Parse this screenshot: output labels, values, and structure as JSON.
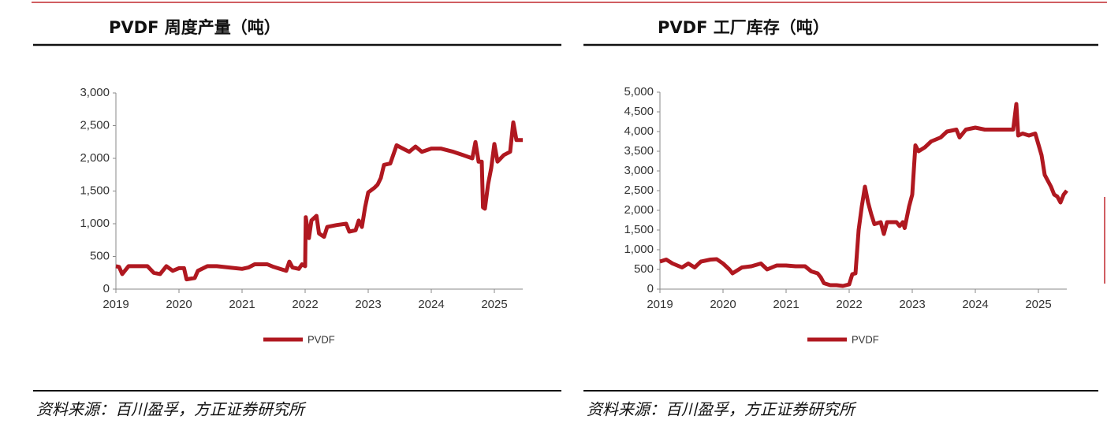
{
  "chart_data": [
    {
      "type": "line",
      "title": "PVDF 周度产量（吨）",
      "source": "资料来源：百川盈孚，方正证券研究所",
      "x": [
        2019.0,
        2019.05,
        2019.1,
        2019.2,
        2019.35,
        2019.5,
        2019.6,
        2019.7,
        2019.8,
        2019.9,
        2020.0,
        2020.08,
        2020.12,
        2020.25,
        2020.3,
        2020.45,
        2020.6,
        2020.8,
        2021.0,
        2021.1,
        2021.2,
        2021.4,
        2021.5,
        2021.6,
        2021.7,
        2021.75,
        2021.8,
        2021.9,
        2021.95,
        2022.0,
        2022.01,
        2022.06,
        2022.1,
        2022.18,
        2022.22,
        2022.3,
        2022.35,
        2022.5,
        2022.65,
        2022.7,
        2022.8,
        2022.85,
        2022.9,
        2022.95,
        2023.0,
        2023.1,
        2023.15,
        2023.2,
        2023.25,
        2023.35,
        2023.45,
        2023.55,
        2023.65,
        2023.75,
        2023.85,
        2024.0,
        2024.15,
        2024.35,
        2024.5,
        2024.65,
        2024.7,
        2024.75,
        2024.8,
        2024.82,
        2024.85,
        2024.9,
        2024.95,
        2025.0,
        2025.05,
        2025.15,
        2025.25,
        2025.3,
        2025.35,
        2025.45
      ],
      "series": [
        {
          "name": "PVDF",
          "color": "#b01820",
          "values": [
            350,
            340,
            230,
            350,
            350,
            350,
            250,
            230,
            350,
            280,
            320,
            320,
            150,
            170,
            280,
            350,
            350,
            330,
            310,
            330,
            380,
            380,
            340,
            310,
            280,
            420,
            330,
            310,
            380,
            350,
            1100,
            780,
            1050,
            1120,
            850,
            800,
            950,
            980,
            1000,
            880,
            900,
            1050,
            950,
            1250,
            1480,
            1550,
            1600,
            1700,
            1900,
            1920,
            2200,
            2150,
            2100,
            2180,
            2100,
            2150,
            2150,
            2100,
            2050,
            2000,
            2250,
            1950,
            1950,
            1250,
            1230,
            1600,
            1850,
            2220,
            1950,
            2050,
            2100,
            2550,
            2280,
            2280
          ]
        }
      ],
      "xlim": [
        2019,
        2025.45
      ],
      "xticks": [
        2019,
        2020,
        2021,
        2022,
        2023,
        2024,
        2025
      ],
      "ylim": [
        0,
        3000
      ],
      "yticks": [
        0,
        500,
        {
          "value": 1000,
          "label": "1,000"
        },
        {
          "value": 1500,
          "label": "1,500"
        },
        {
          "value": 2000,
          "label": "2,000"
        },
        {
          "value": 2500,
          "label": "2,500"
        },
        {
          "value": 3000,
          "label": "3,000"
        }
      ],
      "grid": false
    },
    {
      "type": "line",
      "title": "PVDF 工厂库存（吨）",
      "source": "资料来源：百川盈孚，方正证券研究所",
      "x": [
        2019.0,
        2019.1,
        2019.2,
        2019.35,
        2019.45,
        2019.55,
        2019.65,
        2019.8,
        2019.9,
        2020.0,
        2020.1,
        2020.15,
        2020.3,
        2020.45,
        2020.6,
        2020.7,
        2020.85,
        2021.0,
        2021.15,
        2021.3,
        2021.4,
        2021.5,
        2021.55,
        2021.6,
        2021.7,
        2021.8,
        2021.9,
        2022.0,
        2022.05,
        2022.1,
        2022.15,
        2022.2,
        2022.25,
        2022.3,
        2022.35,
        2022.4,
        2022.5,
        2022.55,
        2022.6,
        2022.75,
        2022.8,
        2022.85,
        2022.88,
        2022.95,
        2023.0,
        2023.05,
        2023.1,
        2023.2,
        2023.3,
        2023.45,
        2023.55,
        2023.7,
        2023.75,
        2023.85,
        2024.0,
        2024.15,
        2024.3,
        2024.45,
        2024.6,
        2024.65,
        2024.68,
        2024.75,
        2024.85,
        2024.95,
        2025.05,
        2025.1,
        2025.2,
        2025.25,
        2025.3,
        2025.35,
        2025.4,
        2025.45
      ],
      "series": [
        {
          "name": "PVDF",
          "color": "#b01820",
          "values": [
            700,
            750,
            650,
            550,
            650,
            550,
            700,
            750,
            760,
            650,
            500,
            400,
            550,
            580,
            650,
            500,
            600,
            600,
            580,
            580,
            450,
            400,
            300,
            150,
            100,
            100,
            80,
            120,
            380,
            400,
            1500,
            2100,
            2600,
            2200,
            1900,
            1650,
            1700,
            1400,
            1700,
            1700,
            1600,
            1700,
            1550,
            2100,
            2400,
            3650,
            3500,
            3600,
            3750,
            3850,
            4000,
            4050,
            3850,
            4050,
            4100,
            4050,
            4050,
            4050,
            4050,
            4700,
            3900,
            3950,
            3900,
            3950,
            3400,
            2900,
            2600,
            2400,
            2350,
            2200,
            2400,
            2500
          ]
        }
      ],
      "xlim": [
        2019,
        2025.45
      ],
      "xticks": [
        2019,
        2020,
        2021,
        2022,
        2023,
        2024,
        2025
      ],
      "ylim": [
        0,
        5000
      ],
      "yticks": [
        0,
        500,
        {
          "value": 1000,
          "label": "1,000"
        },
        {
          "value": 1500,
          "label": "1,500"
        },
        {
          "value": 2000,
          "label": "2,000"
        },
        {
          "value": 2500,
          "label": "2,500"
        },
        {
          "value": 3000,
          "label": "3,000"
        },
        {
          "value": 3500,
          "label": "3,500"
        },
        {
          "value": 4000,
          "label": "4,000"
        },
        {
          "value": 4500,
          "label": "4,500"
        },
        {
          "value": 5000,
          "label": "5,000"
        }
      ],
      "grid": false
    }
  ]
}
